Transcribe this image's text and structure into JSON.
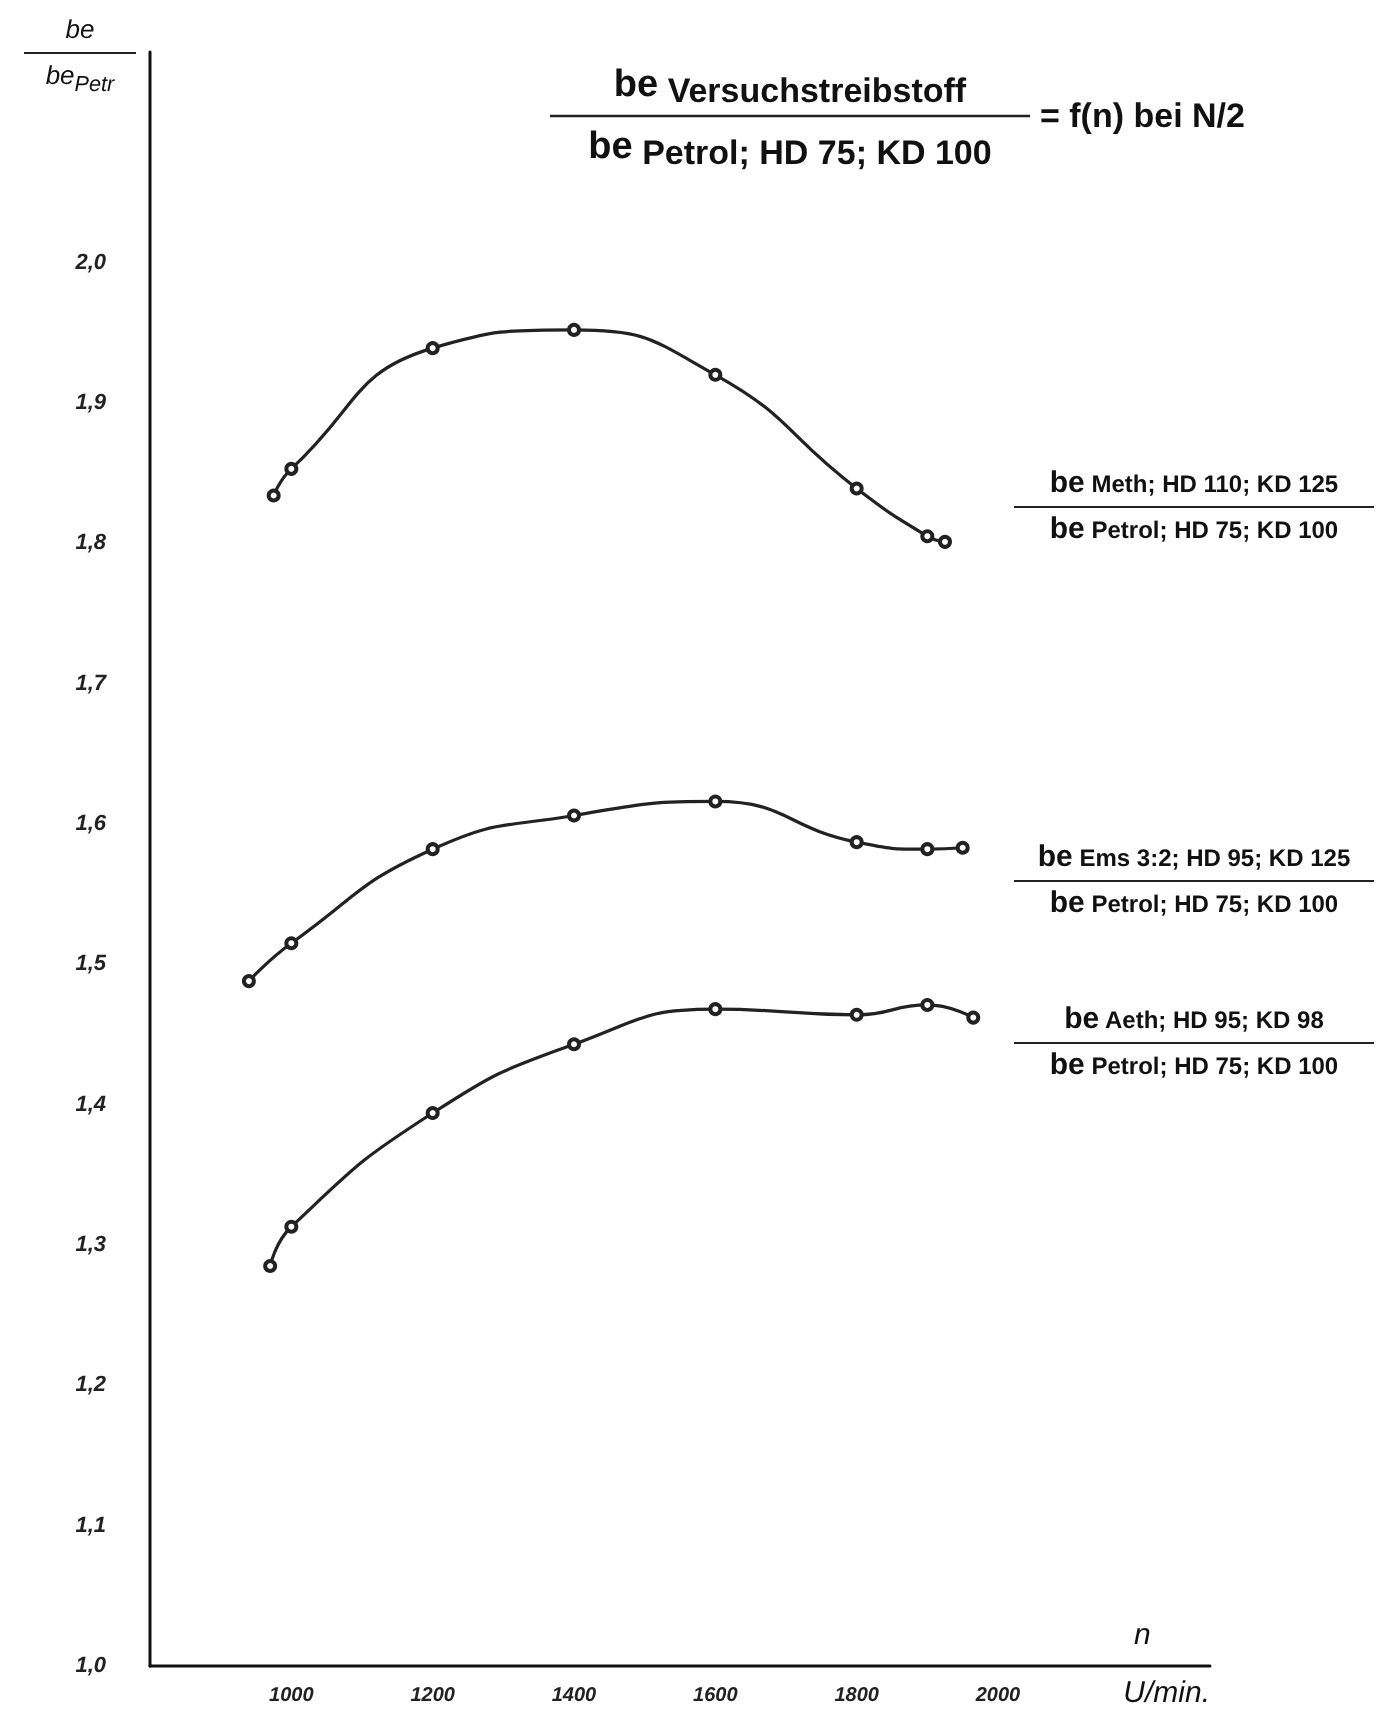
{
  "chart_data": {
    "type": "line",
    "title": "be Versuchstreibstoff",
    "subtitle": "be Petrol; HD 75; KD 100",
    "annotations": [
      "= f(n) bei N/2",
      "n",
      "be Petrol; HD 75; KD 100",
      "be Petrol; HD 75; KD 100",
      "be Petrol; HD 75; KD 100",
      "be$_{Petr}$"
    ],
    "xlabel": "U/min.",
    "ylabel": "be",
    "series": [
      {
        "name": "be Meth; HD 110; KD 125",
        "color": "#222222",
        "x": [
          975,
          1000,
          1200,
          1400,
          1600,
          1800,
          1900,
          1925
        ],
        "values": [
          1.834,
          1.853,
          1.939,
          1.952,
          1.92,
          1.839,
          1.805,
          1.801
        ]
      },
      {
        "name": "be Ems 3:2; HD 95; KD 125",
        "color": "#222222",
        "x": [
          940,
          1000,
          1200,
          1400,
          1600,
          1800,
          1900,
          1950
        ],
        "values": [
          1.488,
          1.515,
          1.582,
          1.606,
          1.616,
          1.587,
          1.582,
          1.583
        ]
      },
      {
        "name": "be Aeth; HD 95; KD 98",
        "color": "#222222",
        "x": [
          970,
          1000,
          1200,
          1400,
          1600,
          1800,
          1900,
          1965
        ],
        "values": [
          1.285,
          1.313,
          1.394,
          1.443,
          1.468,
          1.464,
          1.471,
          1.462
        ]
      }
    ],
    "xlim": [
      800,
      2300
    ],
    "xticks": [
      1000,
      1200,
      1400,
      1600,
      1800,
      2000
    ],
    "ylim": [
      1.0,
      2.15
    ],
    "yticks": [
      {
        "value": 1.0,
        "label": "1,0"
      },
      {
        "value": 1.1,
        "label": "1,1"
      },
      {
        "value": 1.2,
        "label": "1,2"
      },
      {
        "value": 1.3,
        "label": "1,3"
      },
      {
        "value": 1.4,
        "label": "1,4"
      },
      {
        "value": 1.5,
        "label": "1,5"
      },
      {
        "value": 1.6,
        "label": "1,6"
      },
      {
        "value": 1.7,
        "label": "1,7"
      },
      {
        "value": 1.8,
        "label": "1,8"
      },
      {
        "value": 1.9,
        "label": "1,9"
      },
      {
        "value": 2.0,
        "label": "2,0"
      }
    ],
    "grid": false,
    "legend": false,
    "marker": "circle",
    "line_style": "solid"
  }
}
